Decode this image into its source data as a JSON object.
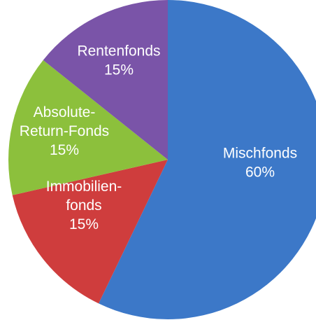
{
  "chart_data": {
    "type": "pie",
    "slices": [
      {
        "label_lines": [
          "Mischfonds"
        ],
        "percent_text": "60%",
        "value": 60,
        "color": "#3c78c8"
      },
      {
        "label_lines": [
          "Immobilien-",
          "fonds"
        ],
        "percent_text": "15%",
        "value": 15,
        "color": "#cf3d3d"
      },
      {
        "label_lines": [
          "Absolute-",
          "Return-Fonds"
        ],
        "percent_text": "15%",
        "value": 15,
        "color": "#8cc03c"
      },
      {
        "label_lines": [
          "Rentenfonds"
        ],
        "percent_text": "15%",
        "value": 15,
        "color": "#7a54a8"
      }
    ],
    "legend": "none",
    "labels_inside_slices": true,
    "start_angle_deg": 0,
    "direction": "clockwise"
  }
}
